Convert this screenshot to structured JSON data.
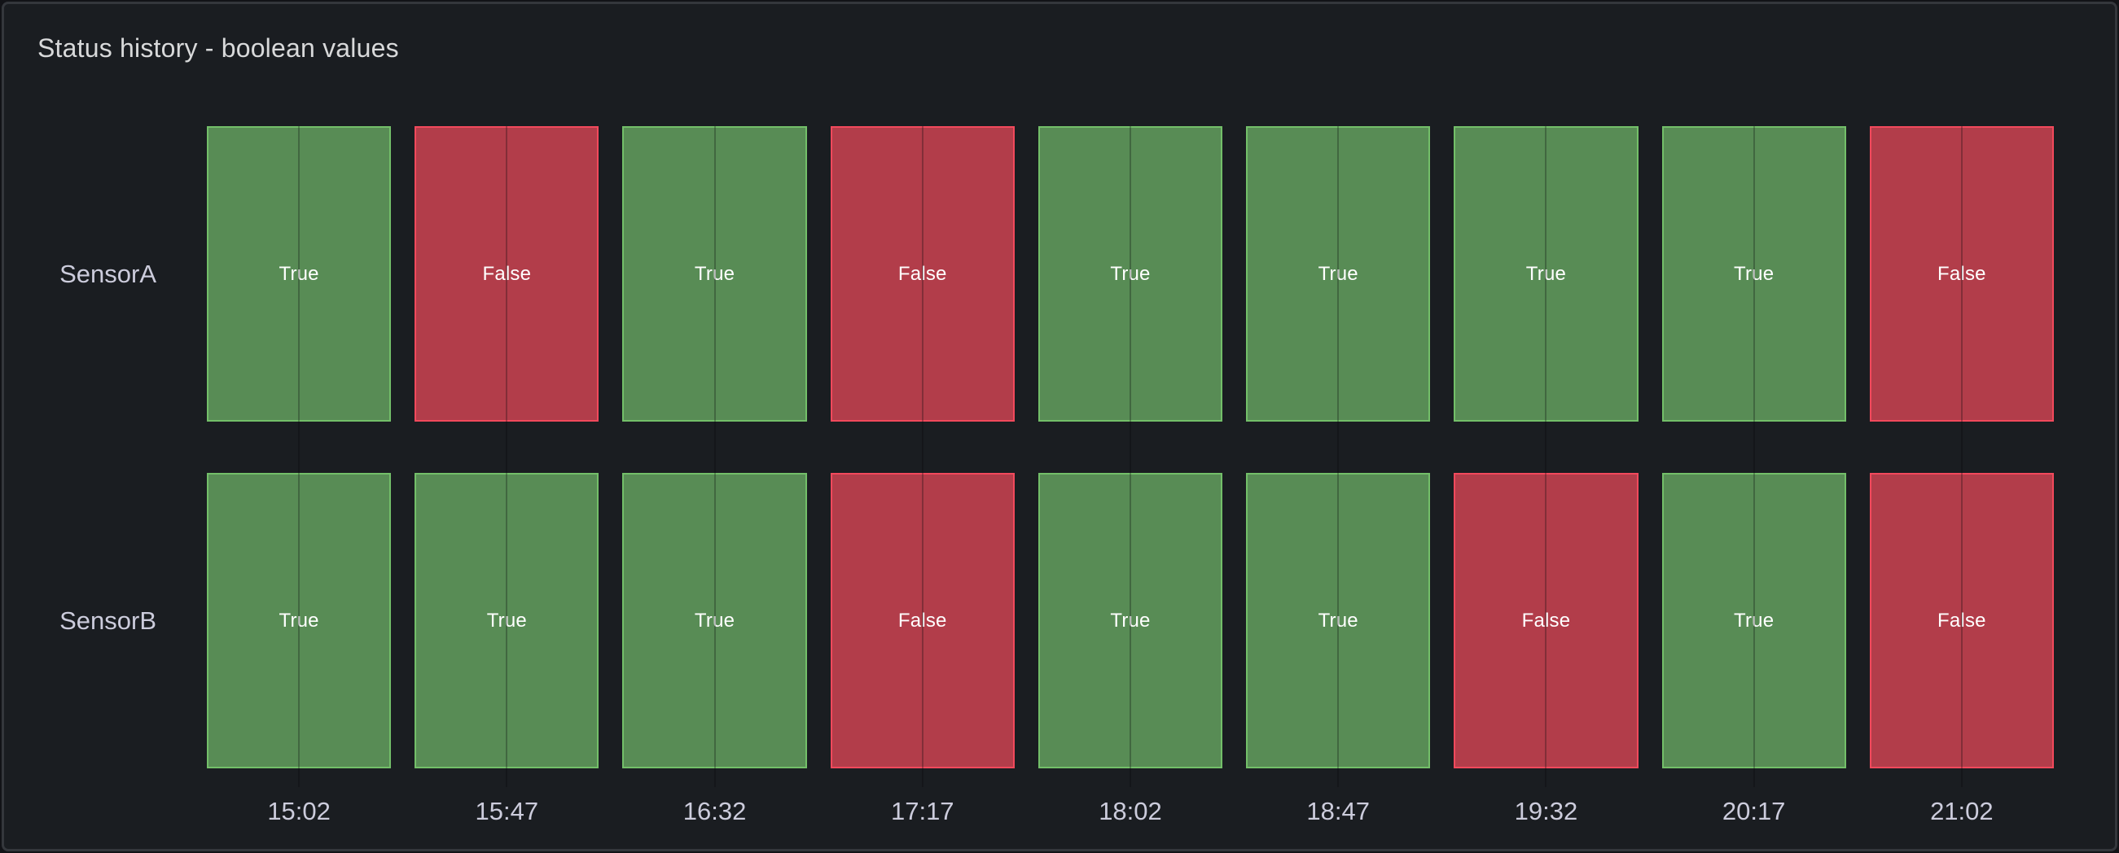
{
  "panel": {
    "title": "Status history - boolean values"
  },
  "colors": {
    "page_background": "#121317",
    "panel_background": "#1A1D21",
    "panel_border": "#34373C",
    "title_text": "#D8D9DA",
    "text_primary": "#CCCCDC",
    "value_text": "#FFFFFF",
    "true_fill": "#588C55",
    "true_border": "#73BF69",
    "false_fill": "#B23D4A",
    "false_border": "#F2495C"
  },
  "chart_data": {
    "type": "heatmap",
    "subtype": "status-history-boolean",
    "title": "Status history - boolean values",
    "x": [
      "15:02",
      "15:47",
      "16:32",
      "17:17",
      "18:02",
      "18:47",
      "19:32",
      "20:17",
      "21:02"
    ],
    "x_interval_minutes": 45,
    "rows": [
      "SensorA",
      "SensorB"
    ],
    "series": [
      {
        "name": "SensorA",
        "values": [
          "True",
          "False",
          "True",
          "False",
          "True",
          "True",
          "True",
          "True",
          "False"
        ]
      },
      {
        "name": "SensorB",
        "values": [
          "True",
          "True",
          "True",
          "False",
          "True",
          "True",
          "False",
          "True",
          "False"
        ]
      }
    ],
    "value_labels": {
      "true": "True",
      "false": "False"
    },
    "legend": "none",
    "gridlines": "vertical-at-column-centers"
  }
}
